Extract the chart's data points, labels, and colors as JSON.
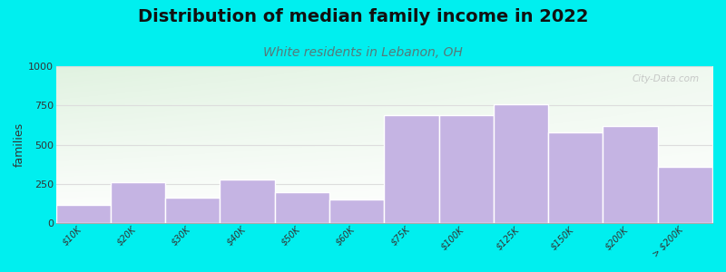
{
  "title": "Distribution of median family income in 2022",
  "subtitle": "White residents in Lebanon, OH",
  "ylabel": "families",
  "categories": [
    "$10K",
    "$20K",
    "$30K",
    "$40K",
    "$50K",
    "$60K",
    "$75K",
    "$100K",
    "$125K",
    "$150K",
    "$200K",
    "> $200K"
  ],
  "values": [
    120,
    260,
    165,
    280,
    200,
    150,
    690,
    690,
    760,
    580,
    620,
    360
  ],
  "bar_color": "#c5b4e3",
  "bar_edge_color": "#ffffff",
  "bg_color": "#00efef",
  "ylim": [
    0,
    1000
  ],
  "yticks": [
    0,
    250,
    500,
    750,
    1000
  ],
  "title_fontsize": 14,
  "title_color": "#111111",
  "subtitle_fontsize": 10,
  "subtitle_color": "#557a7a",
  "watermark": "City-Data.com",
  "watermark_color": "#bbbbbb",
  "grid_color": "#dddddd",
  "plot_bg_left": "#d8eedd",
  "plot_bg_right": "#f5f5f0"
}
